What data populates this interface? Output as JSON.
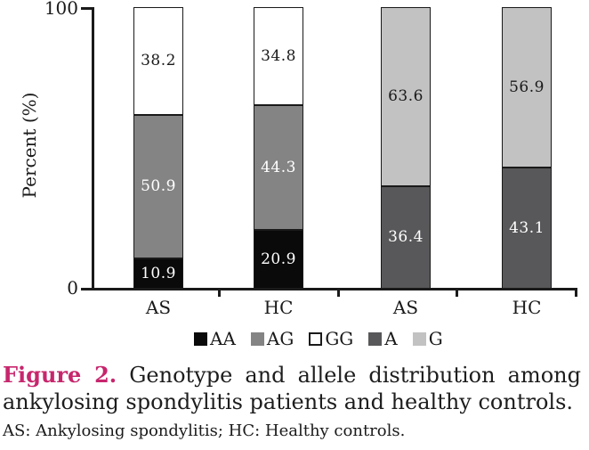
{
  "chart_data": {
    "type": "bar",
    "stacked": true,
    "title": "",
    "xlabel": "",
    "ylabel": "Percent (%)",
    "ylim": [
      0,
      100
    ],
    "ytick_labels": [
      "0",
      "100"
    ],
    "grid": false,
    "legend_position": "bottom",
    "categories": [
      "AS",
      "HC",
      "AS",
      "HC"
    ],
    "series": [
      {
        "name": "AA",
        "color": "#0a0a0a",
        "text_color": "#ffffff",
        "values": [
          10.9,
          20.9,
          null,
          null
        ]
      },
      {
        "name": "AG",
        "color": "#848484",
        "text_color": "#ffffff",
        "values": [
          50.9,
          44.3,
          null,
          null
        ]
      },
      {
        "name": "GG",
        "color": "#ffffff",
        "text_color": "#1a1a1a",
        "values": [
          38.2,
          34.8,
          null,
          null
        ]
      },
      {
        "name": "A",
        "color": "#58585a",
        "text_color": "#ffffff",
        "values": [
          null,
          null,
          36.4,
          43.1
        ]
      },
      {
        "name": "G",
        "color": "#c2c2c2",
        "text_color": "#1a1a1a",
        "values": [
          null,
          null,
          63.6,
          56.9
        ]
      }
    ],
    "legend": [
      {
        "label": "AA",
        "color": "#0a0a0a",
        "border": false
      },
      {
        "label": "AG",
        "color": "#848484",
        "border": false
      },
      {
        "label": "GG",
        "color": "#ffffff",
        "border": true
      },
      {
        "label": "A",
        "color": "#58585a",
        "border": false
      },
      {
        "label": "G",
        "color": "#c2c2c2",
        "border": false
      }
    ]
  },
  "figure": {
    "caption_label": "Figure 2.",
    "caption_line1": "Genotype and allele distribution among",
    "caption_line2": "ankylosing spondylitis patients and healthy controls.",
    "footnote": "AS: Ankylosing spondylitis; HC: Healthy controls.",
    "accent_color": "#c7266d"
  }
}
